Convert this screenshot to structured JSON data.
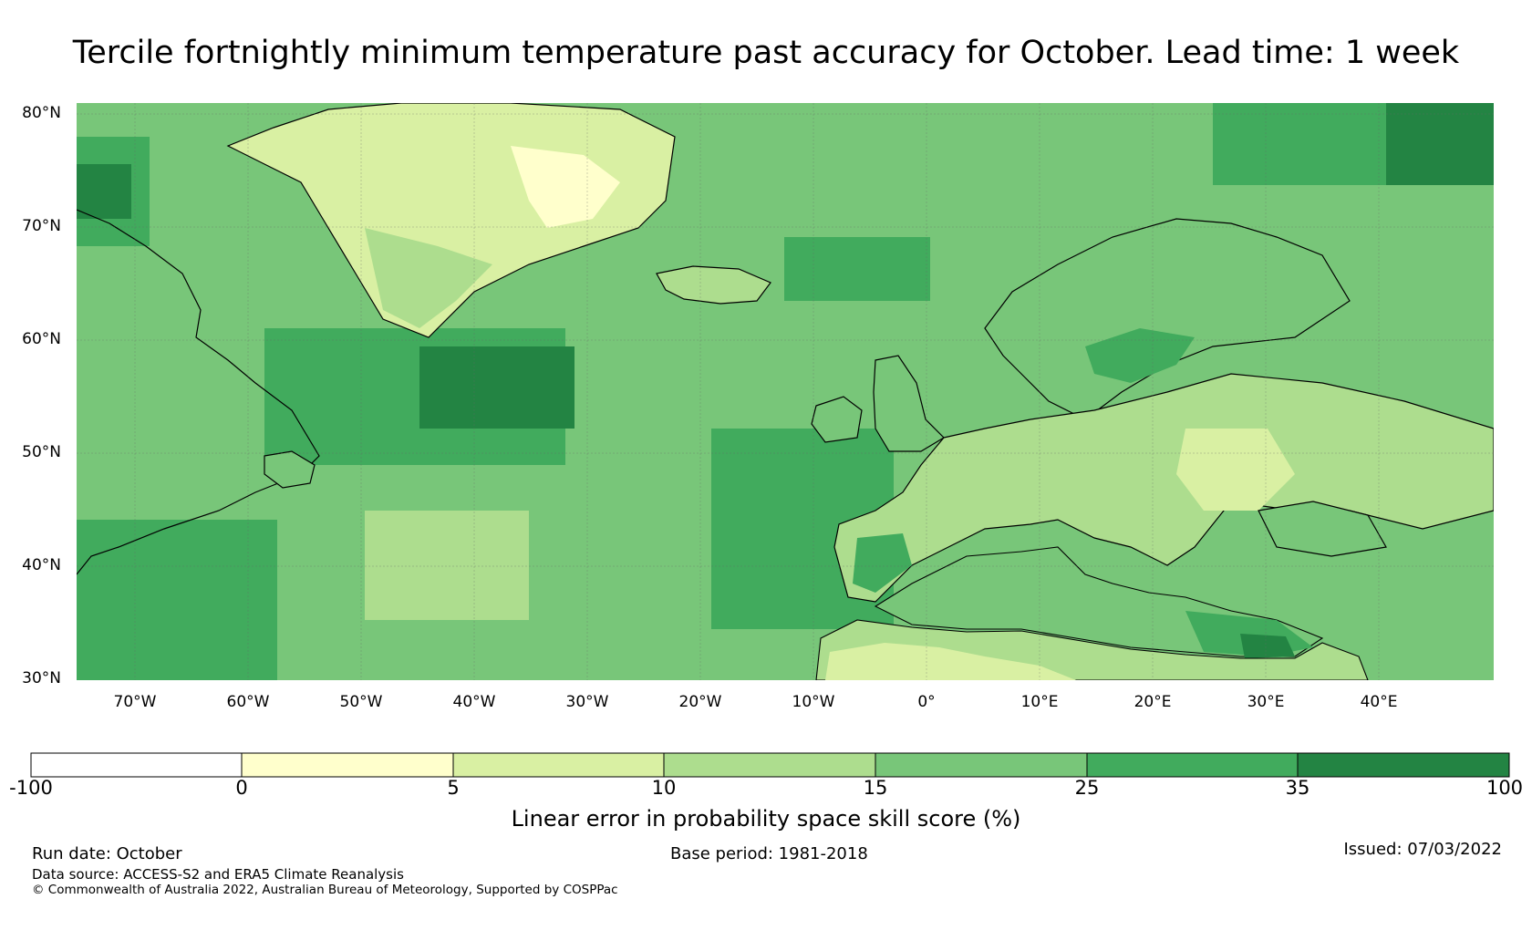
{
  "title": "Tercile fortnightly minimum temperature past accuracy for October. Lead time: 1 week",
  "lat_ticks": [
    "80°N",
    "70°N",
    "60°N",
    "50°N",
    "40°N",
    "30°N"
  ],
  "lon_ticks": [
    "70°W",
    "60°W",
    "50°W",
    "40°W",
    "30°W",
    "20°W",
    "10°W",
    "0°",
    "10°E",
    "20°E",
    "30°E",
    "40°E"
  ],
  "colorbar": {
    "title": "Linear error in probability space skill score (%)",
    "bounds": [
      "-100",
      "0",
      "5",
      "10",
      "15",
      "25",
      "35",
      "100"
    ],
    "colors": [
      "#ffffff",
      "#ffffcc",
      "#d9f0a3",
      "#addd8e",
      "#78c679",
      "#41ab5d",
      "#238443"
    ]
  },
  "footer": {
    "run_date": "Run date: October",
    "base_period": "Base period: 1981-2018",
    "issued": "Issued: 07/03/2022",
    "data_source": "Data source: ACCESS-S2 and ERA5 Climate Reanalysis",
    "copyright": "© Commonwealth of Australia 2022, Australian Bureau of Meteorology, Supported by COSPPac"
  }
}
